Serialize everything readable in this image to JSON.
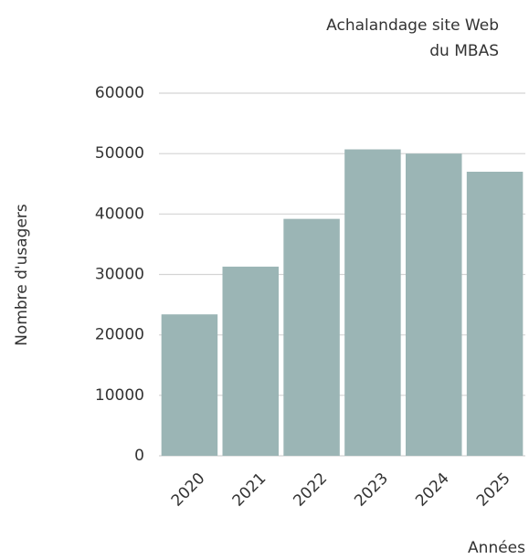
{
  "chart_data": {
    "type": "bar",
    "title": [
      "Achalandage site Web",
      "du MBAS"
    ],
    "y_label": "Nombre d'usagers",
    "x_label": "Années",
    "categories": [
      "2020",
      "2021",
      "2022",
      "2023",
      "2024",
      "2025"
    ],
    "values": [
      23400,
      31300,
      39200,
      50700,
      50000,
      47000
    ],
    "color": "#9bb5b5",
    "ylim": [
      0,
      60000
    ],
    "yticks": [
      0,
      10000,
      20000,
      30000,
      40000,
      50000,
      60000
    ],
    "grid": true
  }
}
